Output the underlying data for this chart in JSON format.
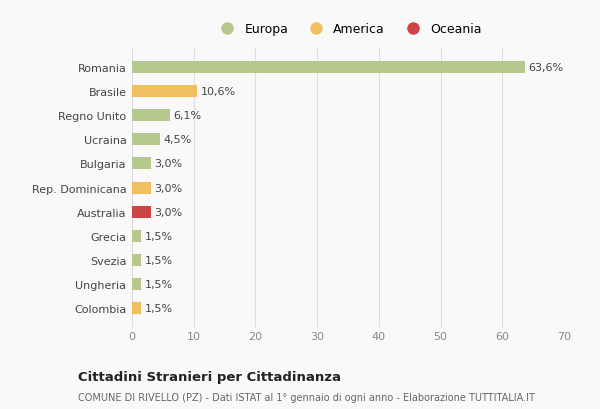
{
  "countries": [
    "Romania",
    "Brasile",
    "Regno Unito",
    "Ucraina",
    "Bulgaria",
    "Rep. Dominicana",
    "Australia",
    "Grecia",
    "Svezia",
    "Ungheria",
    "Colombia"
  ],
  "values": [
    63.6,
    10.6,
    6.1,
    4.5,
    3.0,
    3.0,
    3.0,
    1.5,
    1.5,
    1.5,
    1.5
  ],
  "labels": [
    "63,6%",
    "10,6%",
    "6,1%",
    "4,5%",
    "3,0%",
    "3,0%",
    "3,0%",
    "1,5%",
    "1,5%",
    "1,5%",
    "1,5%"
  ],
  "continents": [
    "Europa",
    "America",
    "Europa",
    "Europa",
    "Europa",
    "America",
    "Oceania",
    "Europa",
    "Europa",
    "Europa",
    "America"
  ],
  "colors": {
    "Europa": "#b5c98e",
    "America": "#f0c060",
    "Oceania": "#cc4444"
  },
  "legend_labels": [
    "Europa",
    "America",
    "Oceania"
  ],
  "legend_colors": [
    "#b5c98e",
    "#f0c060",
    "#cc4444"
  ],
  "xlim": [
    0,
    70
  ],
  "xticks": [
    0,
    10,
    20,
    30,
    40,
    50,
    60,
    70
  ],
  "title": "Cittadini Stranieri per Cittadinanza",
  "subtitle": "COMUNE DI RIVELLO (PZ) - Dati ISTAT al 1° gennaio di ogni anno - Elaborazione TUTTITALIA.IT",
  "bg_color": "#f9f9f9",
  "grid_color": "#dddddd"
}
